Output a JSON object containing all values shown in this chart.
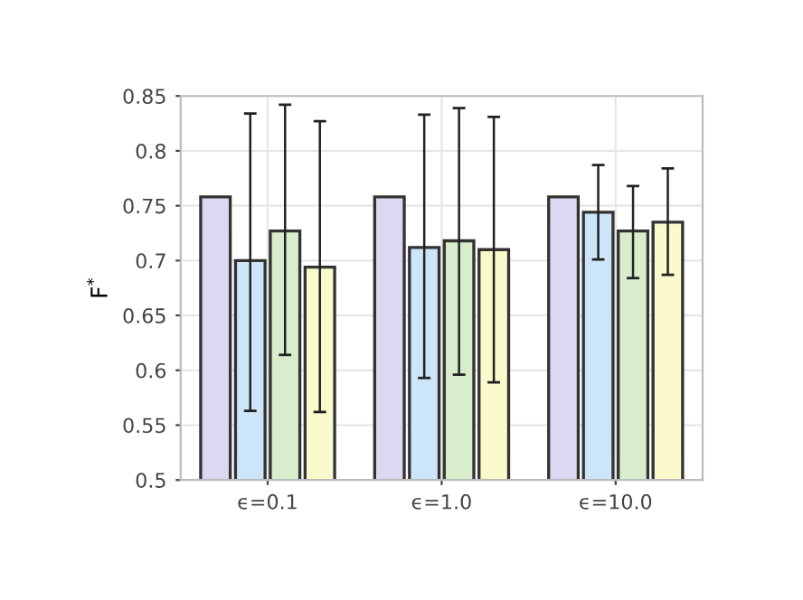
{
  "chart_data": {
    "type": "bar",
    "ylabel": "F$^{*}$",
    "categories": [
      "ϵ=0.1",
      "ϵ=1.0",
      "ϵ=10.0"
    ],
    "series": [
      {
        "color": "#dcd8f2",
        "values": [
          0.758,
          0.758,
          0.758
        ]
      },
      {
        "color": "#cce5f8",
        "values": [
          0.7,
          0.712,
          0.744
        ],
        "errors": [
          [
            0.563,
            0.834
          ],
          [
            0.593,
            0.833
          ],
          [
            0.701,
            0.787
          ]
        ]
      },
      {
        "color": "#d8edcc",
        "values": [
          0.727,
          0.718,
          0.727
        ],
        "errors": [
          [
            0.614,
            0.842
          ],
          [
            0.596,
            0.839
          ],
          [
            0.684,
            0.768
          ]
        ]
      },
      {
        "color": "#fafacc",
        "values": [
          0.694,
          0.71,
          0.735
        ],
        "errors": [
          [
            0.562,
            0.827
          ],
          [
            0.589,
            0.831
          ],
          [
            0.687,
            0.784
          ]
        ]
      }
    ],
    "ylim": [
      0.5,
      0.85
    ],
    "yticks": [
      0.5,
      0.55,
      0.6,
      0.65,
      0.7,
      0.75,
      0.8,
      0.85
    ],
    "grid": true,
    "legend": false
  }
}
